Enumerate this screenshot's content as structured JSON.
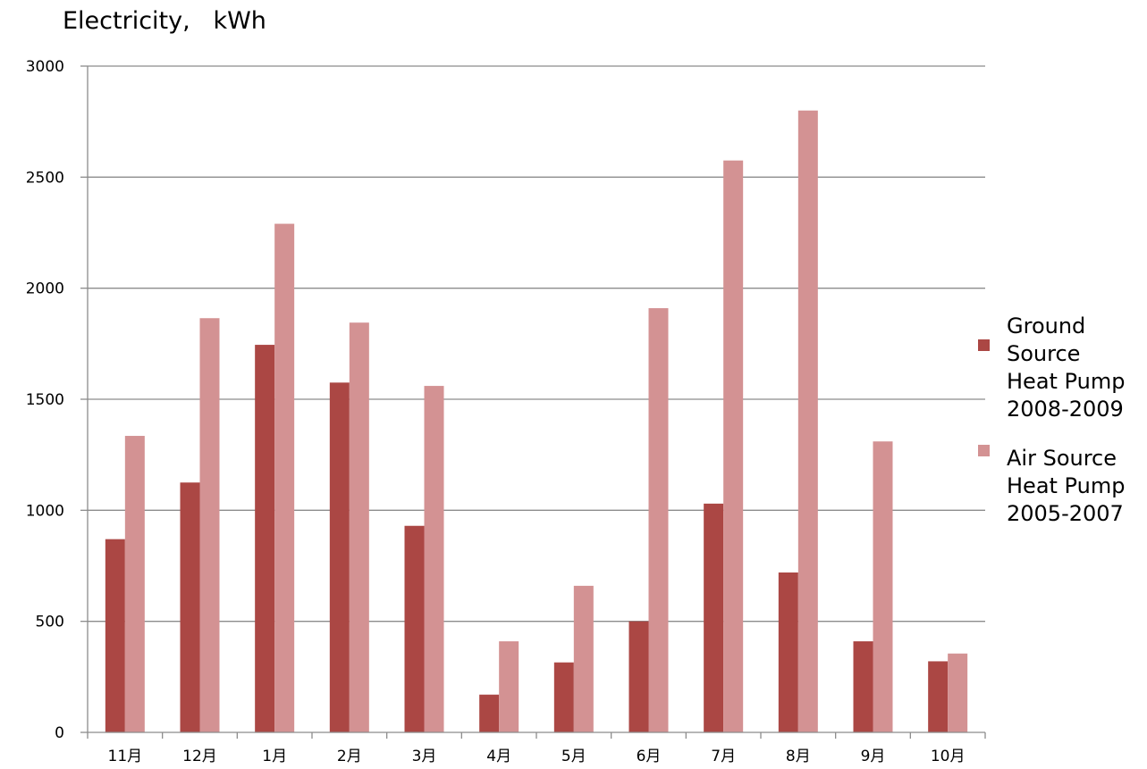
{
  "chart_data": {
    "type": "bar",
    "title": "Electricity,   kWh",
    "xlabel": "",
    "ylabel": "",
    "categories": [
      "11月",
      "12月",
      "1月",
      "2月",
      "3月",
      "4月",
      "5月",
      "6月",
      "7月",
      "8月",
      "9月",
      "10月"
    ],
    "series": [
      {
        "name": "Ground Source Heat Pump 2008-2009",
        "legend_lines": "Ground\nSource\nHeat Pump\n2008-2009",
        "color": "#ab4744",
        "values": [
          870,
          1125,
          1745,
          1575,
          930,
          170,
          315,
          500,
          1030,
          720,
          410,
          320
        ]
      },
      {
        "name": "Air Source Heat Pump 2005-2007",
        "legend_lines": "Air Source\nHeat Pump\n2005-2007",
        "color": "#d39293",
        "values": [
          1335,
          1865,
          2290,
          1845,
          1560,
          410,
          660,
          1910,
          2575,
          2800,
          1310,
          355
        ]
      }
    ],
    "ylim": [
      0,
      3000
    ],
    "yticks": [
      0,
      500,
      1000,
      1500,
      2000,
      2500,
      3000
    ],
    "grid": true,
    "legend": "right"
  }
}
